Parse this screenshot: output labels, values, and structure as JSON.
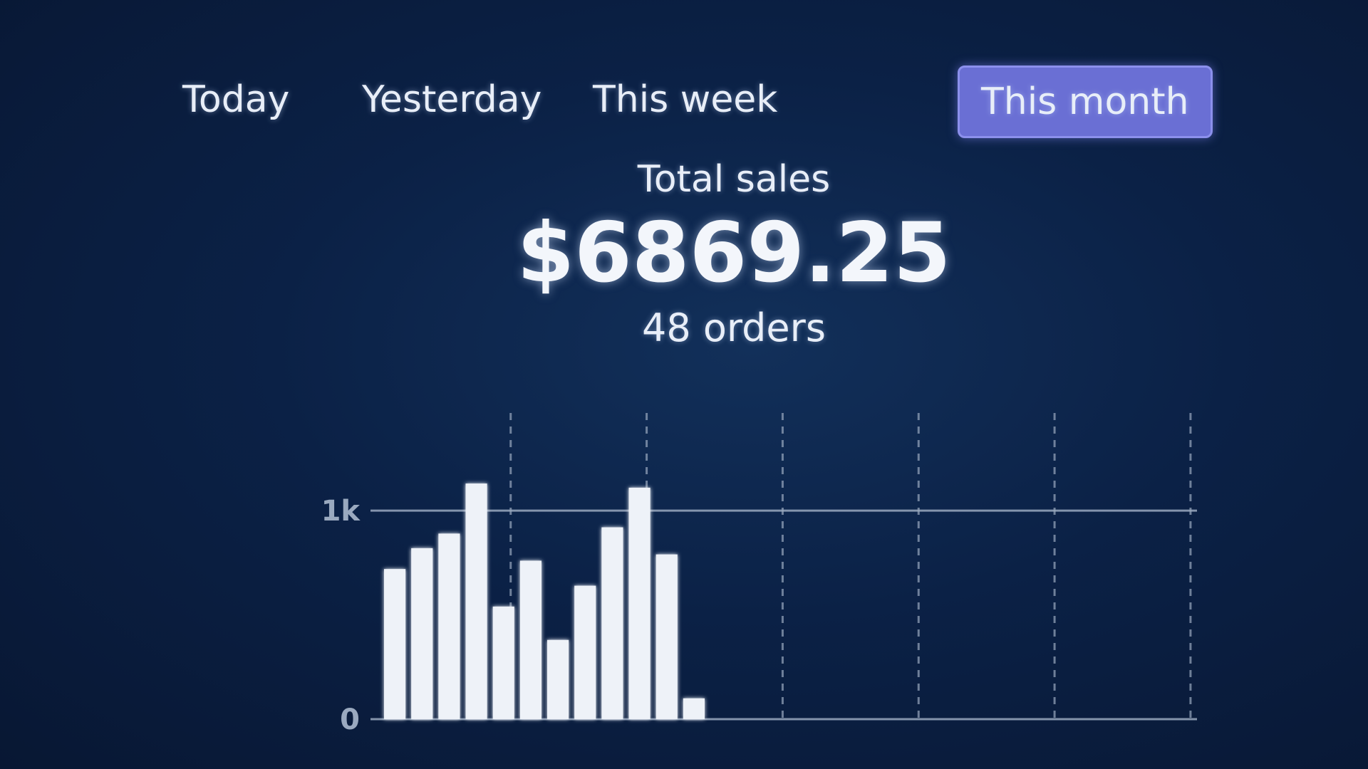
{
  "tabs": [
    {
      "label": "Today",
      "active": false
    },
    {
      "label": "Yesterday",
      "active": false
    },
    {
      "label": "This week",
      "active": false
    },
    {
      "label": "This month",
      "active": true
    }
  ],
  "summary": {
    "label": "Total sales",
    "total": "$6869.25",
    "orders": "48 orders"
  },
  "colors": {
    "background": "#0b1d3c",
    "accent": "#6a6fd4",
    "bar": "#eef2f8",
    "axis": "#9aa9bf"
  },
  "chart_data": {
    "type": "bar",
    "y_ticks": [
      {
        "value": 0,
        "label": "0"
      },
      {
        "value": 1000,
        "label": "1k"
      }
    ],
    "ylim": [
      0,
      1400
    ],
    "values": [
      720,
      820,
      890,
      1130,
      540,
      760,
      380,
      640,
      920,
      1110,
      790,
      100
    ],
    "slots": 30,
    "vertical_grid_every": 5,
    "grid": true
  }
}
